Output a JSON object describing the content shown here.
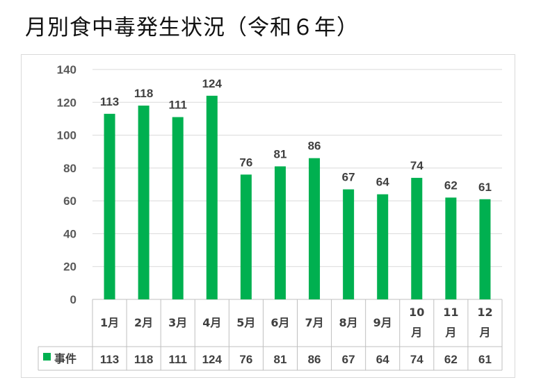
{
  "title": "月別食中毒発生状況（令和６年）",
  "colors": {
    "bar": "#00b050",
    "grid": "#d9d9d9",
    "text": "#404040",
    "axis": "#595959"
  },
  "chart_data": {
    "type": "bar",
    "categories": [
      "1月",
      "2月",
      "3月",
      "4月",
      "5月",
      "6月",
      "7月",
      "8月",
      "9月",
      "10月",
      "11月",
      "12月"
    ],
    "category_lines": [
      [
        "1月"
      ],
      [
        "2月"
      ],
      [
        "3月"
      ],
      [
        "4月"
      ],
      [
        "5月"
      ],
      [
        "6月"
      ],
      [
        "7月"
      ],
      [
        "8月"
      ],
      [
        "9月"
      ],
      [
        "10",
        "月"
      ],
      [
        "11",
        "月"
      ],
      [
        "12",
        "月"
      ]
    ],
    "series": [
      {
        "name": "事件",
        "values": [
          113,
          118,
          111,
          124,
          76,
          81,
          86,
          67,
          64,
          74,
          62,
          61
        ]
      }
    ],
    "yticks": [
      0,
      20,
      40,
      60,
      80,
      100,
      120,
      140
    ],
    "ylim": [
      0,
      140
    ],
    "grid": true,
    "legend": "data-table"
  }
}
